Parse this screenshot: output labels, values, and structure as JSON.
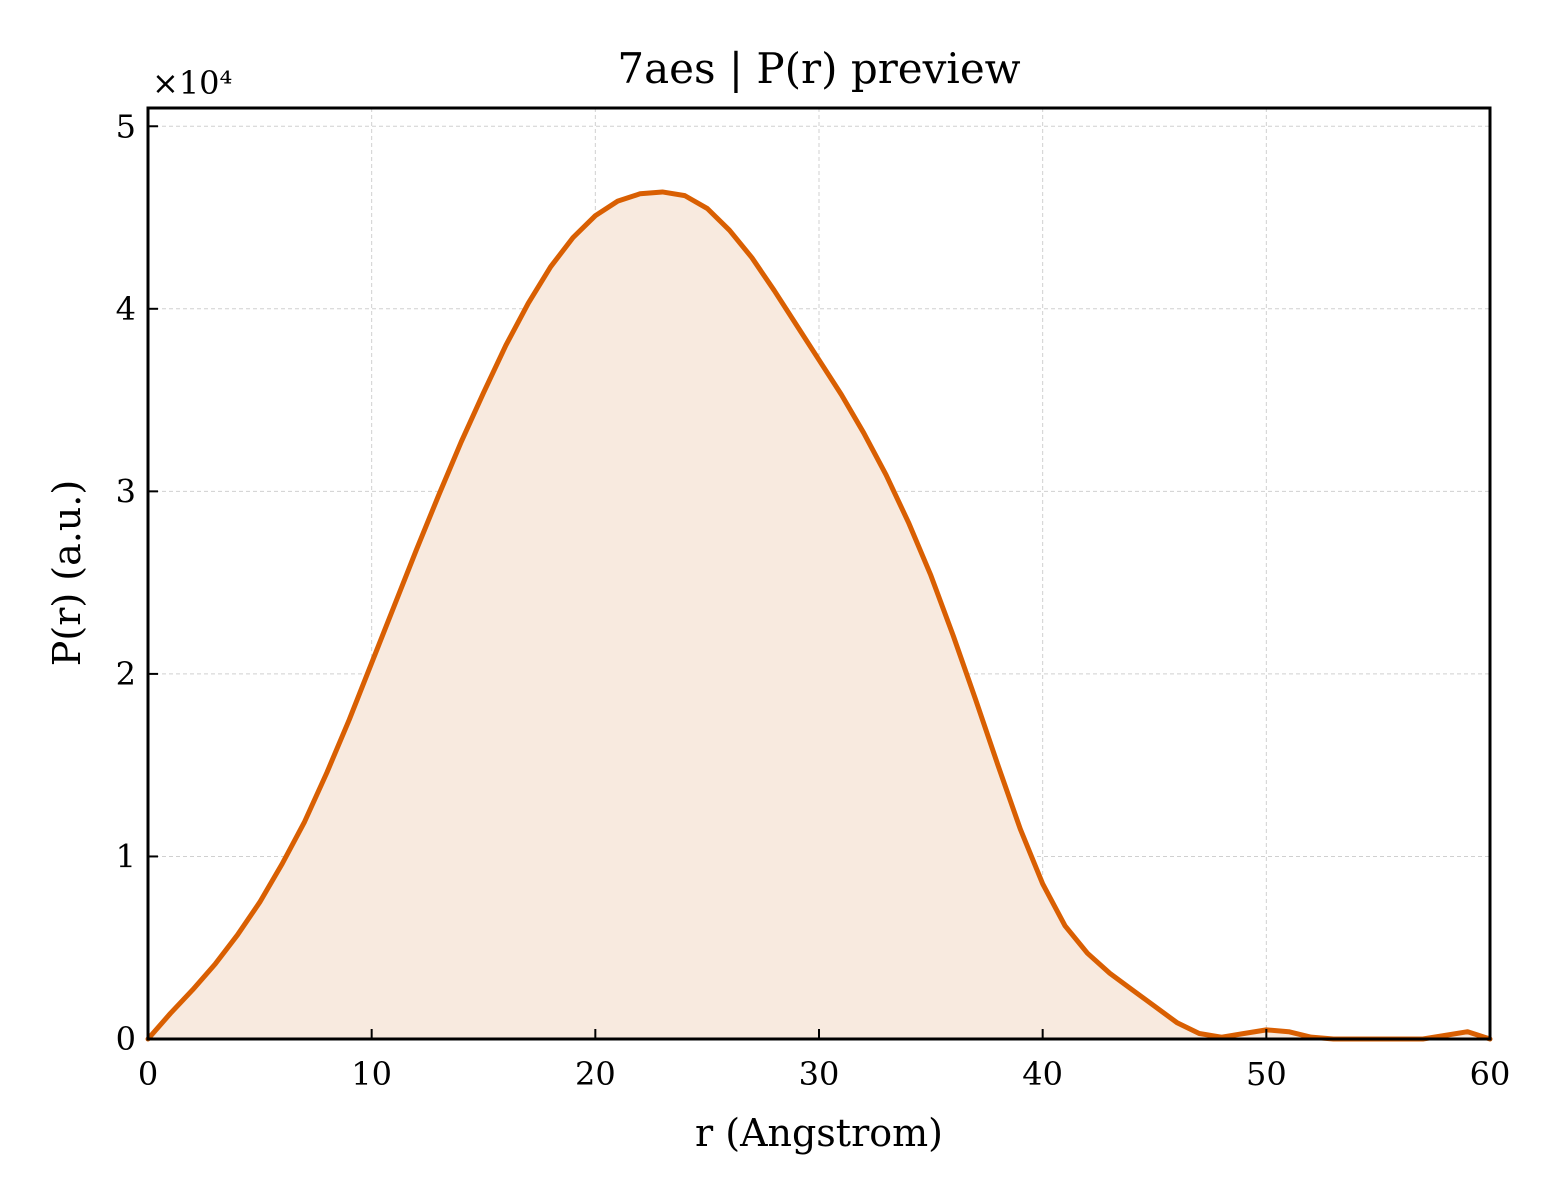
{
  "chart_data": {
    "type": "area",
    "title": "7aes | P(r) preview",
    "xlabel": "r (Angstrom)",
    "ylabel": "P(r) (a.u.)",
    "y_offset_label": "×10⁴",
    "xlim": [
      0,
      60
    ],
    "ylim": [
      0,
      51000
    ],
    "grid": true,
    "x_ticks": [
      0,
      10,
      20,
      30,
      40,
      50,
      60
    ],
    "x_tick_labels": [
      "0",
      "10",
      "20",
      "30",
      "40",
      "50",
      "60"
    ],
    "y_ticks": [
      0,
      10000,
      20000,
      30000,
      40000,
      50000
    ],
    "y_tick_labels": [
      "0",
      "1",
      "2",
      "3",
      "4",
      "5"
    ],
    "series": [
      {
        "line_color": "#d95f02",
        "fill_color": "#f8eadf",
        "x": [
          0,
          1,
          2,
          3,
          4,
          5,
          6,
          7,
          8,
          9,
          10,
          11,
          12,
          13,
          14,
          15,
          16,
          17,
          18,
          19,
          20,
          21,
          22,
          23,
          24,
          25,
          26,
          27,
          28,
          29,
          30,
          31,
          32,
          33,
          34,
          35,
          36,
          37,
          38,
          39,
          40,
          41,
          42,
          43,
          44,
          45,
          46,
          47,
          48,
          49,
          50,
          51,
          52,
          53,
          54,
          55,
          56,
          57,
          58,
          59,
          60
        ],
        "y": [
          0,
          1400,
          2700,
          4100,
          5700,
          7500,
          9600,
          11900,
          14600,
          17500,
          20600,
          23700,
          26800,
          29800,
          32700,
          35400,
          38000,
          40300,
          42300,
          43900,
          45100,
          45900,
          46300,
          46400,
          46200,
          45500,
          44300,
          42800,
          41000,
          39100,
          37200,
          35300,
          33200,
          30900,
          28300,
          25400,
          22100,
          18600,
          15000,
          11500,
          8500,
          6200,
          4700,
          3600,
          2700,
          1800,
          900,
          300,
          100,
          300,
          500,
          400,
          100,
          0,
          0,
          0,
          0,
          0,
          200,
          400,
          0
        ]
      }
    ]
  }
}
